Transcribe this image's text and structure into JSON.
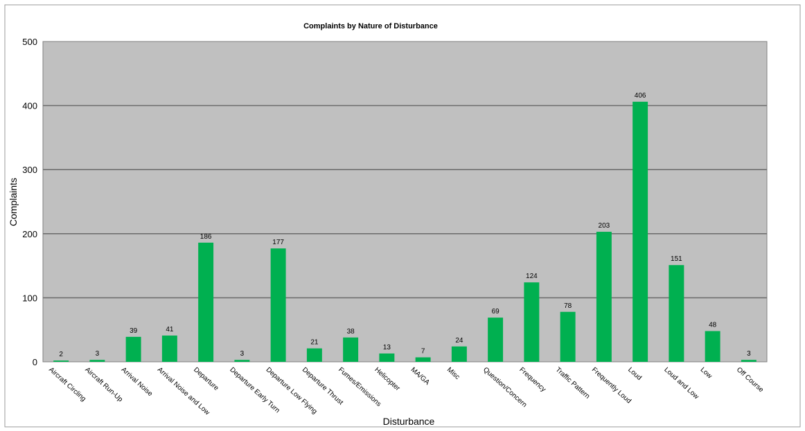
{
  "chart_data": {
    "type": "bar",
    "title": "Complaints by Nature of Disturbance",
    "xlabel": "Disturbance",
    "ylabel": "Complaints",
    "ylim": [
      0,
      500
    ],
    "yticks": [
      0,
      100,
      200,
      300,
      400,
      500
    ],
    "grid": true,
    "legend": "none",
    "colors": {
      "bar": "#00b050",
      "plot_background": "#c0c0c0",
      "gridline": "#6f6f6f"
    },
    "categories": [
      "Aircraft Circling",
      "Aircraft Run-Up",
      "Arrival Noise",
      "Arrival Noise and Low",
      "Departure",
      "Departure Early Turn",
      "Departure Low Flying",
      "Departure Thrust",
      "Fumes/Emissions",
      "Helicopter",
      "MA/GA",
      "Misc",
      "Question/Concern",
      "Frequency",
      "Traffic Pattern",
      "Frequently Loud",
      "Loud",
      "Loud and Low",
      "Low",
      "Off Course"
    ],
    "values": [
      2,
      3,
      39,
      41,
      186,
      3,
      177,
      21,
      38,
      13,
      7,
      24,
      69,
      124,
      78,
      203,
      406,
      151,
      48,
      3
    ]
  }
}
